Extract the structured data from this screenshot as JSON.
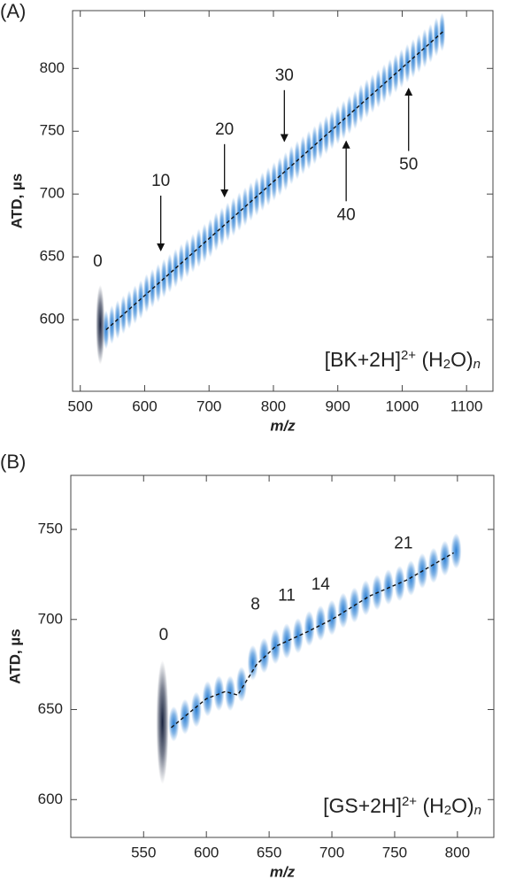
{
  "chart_data": [
    {
      "type": "heatmap",
      "panel": "(A)",
      "x_label": "m/z",
      "y_label": "ATD, µs",
      "xlim": [
        488,
        1141
      ],
      "ylim": [
        543,
        846
      ],
      "xticks": [
        500,
        600,
        700,
        800,
        900,
        1000,
        1100
      ],
      "yticks": [
        600,
        650,
        700,
        750,
        800
      ],
      "color": "#1f78d1",
      "first_color": "#0b1633",
      "x": [
        531,
        540,
        549,
        558,
        567,
        576,
        585,
        594,
        603,
        612,
        621,
        630,
        639,
        648,
        657,
        666,
        675,
        684,
        693,
        702,
        711,
        720,
        729,
        738,
        747,
        756,
        765,
        774,
        783,
        792,
        801,
        810,
        819,
        828,
        837,
        846,
        855,
        864,
        873,
        882,
        891,
        900,
        909,
        918,
        927,
        936,
        945,
        954,
        963,
        972,
        981,
        990,
        999,
        1008,
        1017,
        1026,
        1035,
        1044,
        1053,
        1062
      ],
      "values": [
        596,
        592,
        596,
        600,
        604,
        608,
        612,
        616,
        621,
        625,
        629,
        633,
        637,
        641,
        645,
        649,
        653,
        657,
        661,
        665,
        670,
        674,
        678,
        682,
        686,
        690,
        694,
        698,
        702,
        706,
        710,
        714,
        718,
        723,
        727,
        731,
        735,
        739,
        743,
        747,
        751,
        755,
        759,
        763,
        767,
        772,
        776,
        780,
        784,
        788,
        792,
        796,
        800,
        804,
        808,
        812,
        816,
        820,
        825,
        829
      ],
      "fit_x": [
        540,
        1065
      ],
      "fit_y": [
        592,
        830
      ],
      "annotations": [
        {
          "text": "0",
          "x": 527,
          "y": 646
        },
        {
          "text": "10",
          "x": 625,
          "y": 710,
          "arrow_y": 655
        },
        {
          "text": "20",
          "x": 724,
          "y": 751,
          "arrow_y": 698
        },
        {
          "text": "30",
          "x": 817,
          "y": 794,
          "arrow_y": 742
        },
        {
          "text": "40",
          "x": 913,
          "y": 683,
          "arrow_y": 742
        },
        {
          "text": "50",
          "x": 1010,
          "y": 723,
          "arrow_y": 784
        }
      ],
      "formula": [
        {
          "text": "[BK+2H]"
        },
        {
          "text": "2+",
          "style": "sup"
        },
        {
          "text": " (H"
        },
        {
          "text": "2",
          "style": "sub"
        },
        {
          "text": "O)"
        },
        {
          "text": "n",
          "style": "sub-italic"
        }
      ]
    },
    {
      "type": "heatmap",
      "panel": "(B)",
      "x_label": "m/z",
      "y_label": "ATD, µs",
      "xlim": [
        492,
        829
      ],
      "ylim": [
        579,
        780
      ],
      "xticks": [
        550,
        600,
        650,
        700,
        750,
        800
      ],
      "yticks": [
        600,
        650,
        700,
        750
      ],
      "color": "#1f78d1",
      "first_color": "#0b1633",
      "x": [
        565,
        574,
        583,
        592,
        601,
        610,
        619,
        628,
        637,
        646,
        655,
        664,
        673,
        682,
        691,
        700,
        709,
        718,
        727,
        736,
        745,
        754,
        763,
        772,
        781,
        790,
        799
      ],
      "values": [
        643,
        642,
        646,
        650,
        656,
        659,
        659,
        664,
        676,
        680,
        685,
        688,
        691,
        695,
        698,
        701,
        705,
        708,
        712,
        715,
        718,
        720,
        723,
        727,
        730,
        734,
        738
      ],
      "fit_x": [
        572,
        600,
        615,
        625,
        640,
        655,
        680,
        700,
        730,
        760,
        797
      ],
      "fit_y": [
        640,
        656,
        660,
        658,
        675,
        685,
        693,
        700,
        713,
        722,
        737
      ],
      "annotations": [
        {
          "text": "0",
          "x": 566,
          "y": 691
        },
        {
          "text": "8",
          "x": 639,
          "y": 708
        },
        {
          "text": "11",
          "x": 664,
          "y": 713
        },
        {
          "text": "14",
          "x": 691,
          "y": 719
        },
        {
          "text": "21",
          "x": 757,
          "y": 742
        }
      ],
      "formula": [
        {
          "text": "[GS+2H]"
        },
        {
          "text": "2+",
          "style": "sup"
        },
        {
          "text": " (H"
        },
        {
          "text": "2",
          "style": "sub"
        },
        {
          "text": "O)"
        },
        {
          "text": "n",
          "style": "sub-italic"
        }
      ]
    }
  ]
}
